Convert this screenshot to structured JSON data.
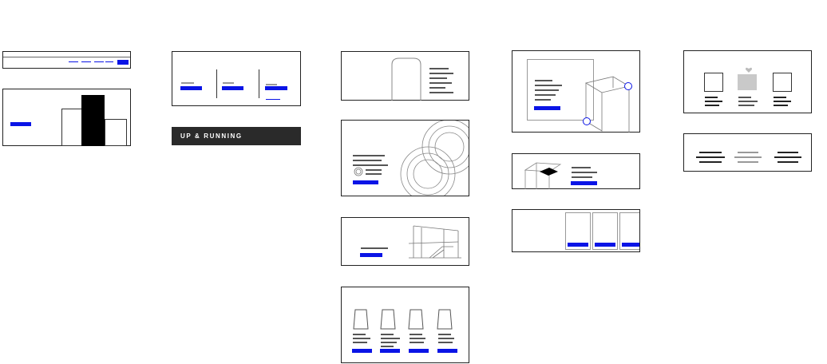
{
  "banner": {
    "text": "UP & RUNNING"
  },
  "palette": {
    "accent": "#0a14e6",
    "ink": "#222222",
    "muted": "#999999",
    "fill_gray": "#c9c9c9",
    "banner_bg": "#2a2a2a"
  },
  "icons": [
    "arch-outline-icon",
    "concentric-circles-icon",
    "house-outline-icon",
    "cup-outline-icon",
    "isometric-box-icon",
    "isometric-floor-icon",
    "heart-shape-icon"
  ]
}
